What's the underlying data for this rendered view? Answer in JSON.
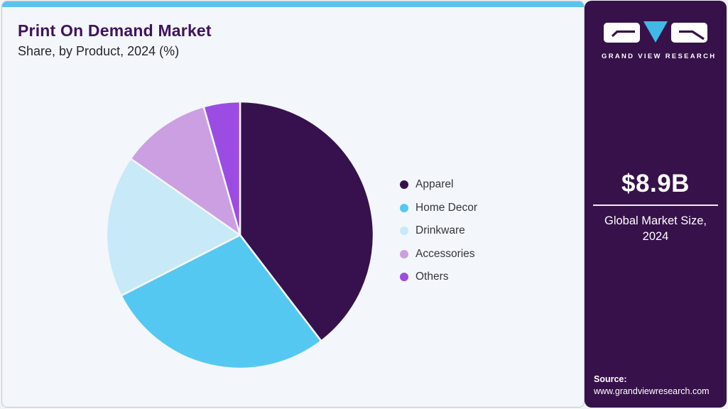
{
  "header": {
    "title": "Print On Demand Market",
    "subtitle": "Share, by Product, 2024 (%)"
  },
  "chart_data": {
    "type": "pie",
    "title": "Print On Demand Market Share, by Product, 2024 (%)",
    "categories": [
      "Apparel",
      "Home Decor",
      "Drinkware",
      "Accessories",
      "Others"
    ],
    "values": [
      39.6,
      27.9,
      17.2,
      10.9,
      4.4
    ],
    "unit": "%",
    "slice_colors": [
      "#36114e",
      "#55c8f2",
      "#c7e9f8",
      "#cb9fe2",
      "#9c4ce2"
    ],
    "start_angle_deg": 0,
    "direction": "clockwise",
    "legend_position": "right",
    "data_labels_shown": false
  },
  "sidebar": {
    "logo_brand": "GRAND VIEW RESEARCH",
    "market_size_value": "$8.9B",
    "market_size_label": "Global Market Size, 2024",
    "source_label": "Source:",
    "source_url": "www.grandviewresearch.com"
  },
  "colors": {
    "accent-bar": "#5bc2ec",
    "panel-bg": "#f3f6fa",
    "sidebar-bg": "#36114a",
    "title": "#41125f",
    "legend-text": "#36363e",
    "logo-triangle": "#41b9e6",
    "logo-tile": "#ffffff"
  }
}
